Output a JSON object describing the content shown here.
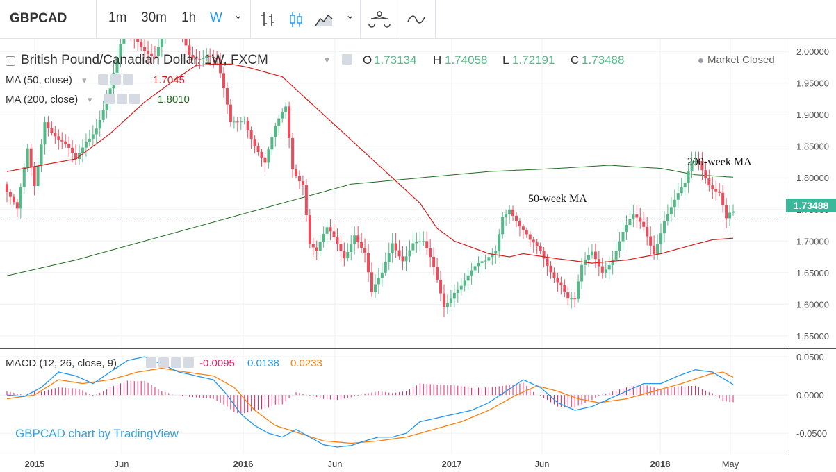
{
  "toolbar": {
    "symbol": "GBPCAD",
    "intervals": [
      "1m",
      "30m",
      "1h",
      "W"
    ],
    "active_interval": "W",
    "chevron": "⌄",
    "icons": [
      "bar-style-icon",
      "candle-style-icon",
      "area-style-icon",
      "compare-icon",
      "indicators-icon"
    ]
  },
  "legend": {
    "title": "British Pound/Canadian Dollar, 1W, FXCM",
    "dropdown_caret": "▾",
    "ohlc": [
      {
        "key": "O",
        "value": "1.73134"
      },
      {
        "key": "H",
        "value": "1.74058"
      },
      {
        "key": "L",
        "value": "1.72191"
      },
      {
        "key": "C",
        "value": "1.73488"
      }
    ],
    "ma50": {
      "label": "MA (50, close)",
      "value": "1.7045"
    },
    "ma200": {
      "label": "MA (200, close)",
      "value": "1.8010"
    },
    "macd": {
      "label": "MACD (12, 26, close, 9)",
      "hist": "-0.0095",
      "macd": "0.0138",
      "signal": "0.0233"
    },
    "market_status": "Market Closed"
  },
  "watermark": "GBPCAD chart by TradingView",
  "colors": {
    "up": "#53b987",
    "down": "#eb4d5c",
    "ma50": "#d81b1b",
    "ma200": "#1e6b1e",
    "macd": "#2196f3",
    "signal": "#ff7f0e",
    "hist": "#e91e63",
    "accent": "#2196f3"
  },
  "chart_data": {
    "type": "candlestick",
    "title": "British Pound/Canadian Dollar, 1W, FXCM",
    "x_ticks": [
      "2015",
      "Jun",
      "2016",
      "Jun",
      "2017",
      "Jun",
      "2018",
      "May"
    ],
    "y_ticks": [
      "1.55000",
      "1.60000",
      "1.65000",
      "1.70000",
      "1.75000",
      "1.80000",
      "1.85000",
      "1.90000",
      "1.95000",
      "2.00000"
    ],
    "ylim": [
      1.53,
      2.02
    ],
    "last_price": "1.73488",
    "annotations": [
      {
        "text": "200-week MA",
        "x_week": 207,
        "y": 1.82
      },
      {
        "text": "50-week MA",
        "x_week": 160,
        "y": 1.762
      }
    ],
    "price_anchors": [
      [
        0,
        1.79
      ],
      [
        4,
        1.74
      ],
      [
        7,
        1.84
      ],
      [
        9,
        1.79
      ],
      [
        12,
        1.9
      ],
      [
        16,
        1.86
      ],
      [
        21,
        1.82
      ],
      [
        24,
        1.86
      ],
      [
        27,
        1.89
      ],
      [
        31,
        1.94
      ],
      [
        35,
        2.02
      ],
      [
        39,
        2.02
      ],
      [
        44,
        2.0
      ],
      [
        49,
        2.05
      ],
      [
        54,
        2.0
      ],
      [
        59,
        2.0
      ],
      [
        62,
        1.98
      ],
      [
        64,
        1.93
      ],
      [
        66,
        1.88
      ],
      [
        70,
        1.9
      ],
      [
        73,
        1.86
      ],
      [
        76,
        1.82
      ],
      [
        79,
        1.87
      ],
      [
        82,
        1.91
      ],
      [
        84,
        1.82
      ],
      [
        87,
        1.8
      ],
      [
        89,
        1.7
      ],
      [
        91,
        1.68
      ],
      [
        94,
        1.71
      ],
      [
        96,
        1.7
      ],
      [
        99,
        1.68
      ],
      [
        102,
        1.72
      ],
      [
        105,
        1.68
      ],
      [
        107,
        1.61
      ],
      [
        110,
        1.64
      ],
      [
        113,
        1.7
      ],
      [
        116,
        1.68
      ],
      [
        119,
        1.7
      ],
      [
        122,
        1.69
      ],
      [
        125,
        1.65
      ],
      [
        128,
        1.6
      ],
      [
        131,
        1.63
      ],
      [
        134,
        1.64
      ],
      [
        137,
        1.65
      ],
      [
        140,
        1.66
      ],
      [
        143,
        1.69
      ],
      [
        145,
        1.75
      ],
      [
        147,
        1.76
      ],
      [
        150,
        1.72
      ],
      [
        153,
        1.69
      ],
      [
        156,
        1.68
      ],
      [
        159,
        1.66
      ],
      [
        162,
        1.64
      ],
      [
        164,
        1.61
      ],
      [
        166,
        1.6
      ],
      [
        168,
        1.65
      ],
      [
        171,
        1.68
      ],
      [
        174,
        1.66
      ],
      [
        177,
        1.68
      ],
      [
        180,
        1.71
      ],
      [
        183,
        1.73
      ],
      [
        186,
        1.72
      ],
      [
        189,
        1.69
      ],
      [
        192,
        1.74
      ],
      [
        195,
        1.76
      ],
      [
        198,
        1.78
      ],
      [
        200,
        1.82
      ],
      [
        202,
        1.83
      ],
      [
        205,
        1.8
      ],
      [
        208,
        1.78
      ],
      [
        210,
        1.73
      ],
      [
        211,
        1.735
      ]
    ],
    "ma50_anchors": [
      [
        0,
        1.81
      ],
      [
        10,
        1.82
      ],
      [
        20,
        1.83
      ],
      [
        30,
        1.87
      ],
      [
        40,
        1.92
      ],
      [
        50,
        1.96
      ],
      [
        55,
        1.978
      ],
      [
        60,
        1.98
      ],
      [
        65,
        1.98
      ],
      [
        70,
        1.975
      ],
      [
        80,
        1.96
      ],
      [
        90,
        1.91
      ],
      [
        100,
        1.86
      ],
      [
        110,
        1.81
      ],
      [
        120,
        1.76
      ],
      [
        125,
        1.72
      ],
      [
        130,
        1.7
      ],
      [
        135,
        1.69
      ],
      [
        140,
        1.68
      ],
      [
        146,
        1.675
      ],
      [
        150,
        1.68
      ],
      [
        160,
        1.672
      ],
      [
        170,
        1.665
      ],
      [
        180,
        1.67
      ],
      [
        190,
        1.68
      ],
      [
        200,
        1.695
      ],
      [
        205,
        1.702
      ],
      [
        211,
        1.7045
      ]
    ],
    "ma200_anchors": [
      [
        0,
        1.645
      ],
      [
        20,
        1.67
      ],
      [
        40,
        1.7
      ],
      [
        60,
        1.73
      ],
      [
        80,
        1.76
      ],
      [
        100,
        1.79
      ],
      [
        120,
        1.8
      ],
      [
        140,
        1.81
      ],
      [
        160,
        1.815
      ],
      [
        175,
        1.82
      ],
      [
        190,
        1.815
      ],
      [
        200,
        1.805
      ],
      [
        211,
        1.801
      ]
    ],
    "macd_anchors": [
      [
        0,
        0.0
      ],
      [
        5,
        -0.002
      ],
      [
        10,
        0.01
      ],
      [
        15,
        0.03
      ],
      [
        20,
        0.025
      ],
      [
        25,
        0.015
      ],
      [
        30,
        0.03
      ],
      [
        35,
        0.045
      ],
      [
        40,
        0.05
      ],
      [
        45,
        0.04
      ],
      [
        50,
        0.03
      ],
      [
        55,
        0.025
      ],
      [
        60,
        0.02
      ],
      [
        64,
        0.0
      ],
      [
        68,
        -0.025
      ],
      [
        72,
        -0.04
      ],
      [
        76,
        -0.05
      ],
      [
        80,
        -0.055
      ],
      [
        84,
        -0.045
      ],
      [
        88,
        -0.055
      ],
      [
        92,
        -0.065
      ],
      [
        96,
        -0.068
      ],
      [
        100,
        -0.066
      ],
      [
        104,
        -0.06
      ],
      [
        108,
        -0.055
      ],
      [
        112,
        -0.055
      ],
      [
        116,
        -0.05
      ],
      [
        120,
        -0.035
      ],
      [
        125,
        -0.03
      ],
      [
        130,
        -0.025
      ],
      [
        135,
        -0.02
      ],
      [
        140,
        -0.01
      ],
      [
        145,
        0.005
      ],
      [
        150,
        0.02
      ],
      [
        155,
        0.01
      ],
      [
        160,
        -0.01
      ],
      [
        165,
        -0.02
      ],
      [
        170,
        -0.015
      ],
      [
        175,
        -0.005
      ],
      [
        180,
        0.005
      ],
      [
        185,
        0.015
      ],
      [
        190,
        0.015
      ],
      [
        195,
        0.025
      ],
      [
        200,
        0.033
      ],
      [
        205,
        0.03
      ],
      [
        208,
        0.022
      ],
      [
        211,
        0.0138
      ]
    ],
    "signal_anchors": [
      [
        0,
        -0.005
      ],
      [
        8,
        0.0
      ],
      [
        15,
        0.02
      ],
      [
        22,
        0.015
      ],
      [
        30,
        0.02
      ],
      [
        38,
        0.03
      ],
      [
        45,
        0.035
      ],
      [
        52,
        0.03
      ],
      [
        60,
        0.025
      ],
      [
        66,
        0.01
      ],
      [
        72,
        -0.02
      ],
      [
        78,
        -0.04
      ],
      [
        85,
        -0.05
      ],
      [
        92,
        -0.06
      ],
      [
        100,
        -0.063
      ],
      [
        108,
        -0.06
      ],
      [
        116,
        -0.055
      ],
      [
        124,
        -0.045
      ],
      [
        132,
        -0.035
      ],
      [
        140,
        -0.02
      ],
      [
        148,
        0.0
      ],
      [
        154,
        0.012
      ],
      [
        160,
        0.005
      ],
      [
        166,
        -0.005
      ],
      [
        172,
        -0.01
      ],
      [
        180,
        -0.005
      ],
      [
        188,
        0.005
      ],
      [
        196,
        0.015
      ],
      [
        204,
        0.027
      ],
      [
        208,
        0.03
      ],
      [
        211,
        0.0233
      ]
    ]
  }
}
